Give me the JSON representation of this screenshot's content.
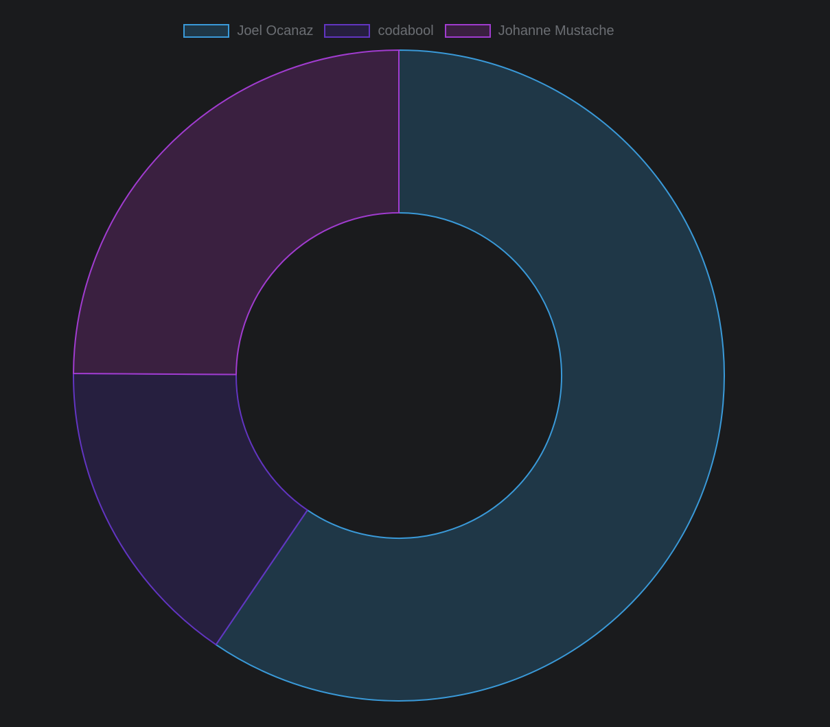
{
  "chart_data": {
    "type": "doughnut",
    "legend_position": "top",
    "series": [
      {
        "name": "Joel Ocanaz",
        "value": 59.5,
        "border": "#3a9ad9",
        "fill": "#1f3747"
      },
      {
        "name": "codabool",
        "value": 15.6,
        "border": "#6235c2",
        "fill": "#261f3f"
      },
      {
        "name": "Johanne Mustache",
        "value": 24.9,
        "border": "#a13cd0",
        "fill": "#3a2040"
      }
    ]
  }
}
